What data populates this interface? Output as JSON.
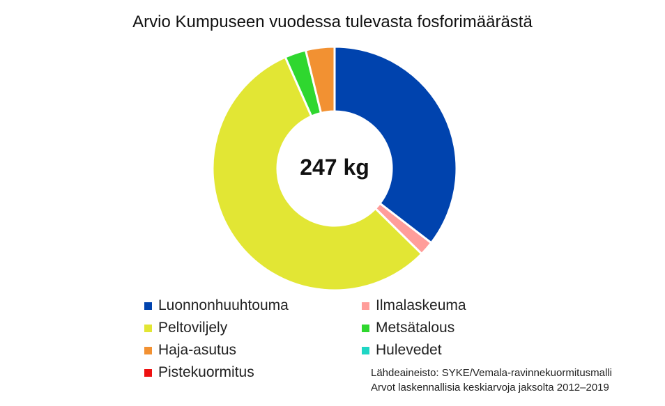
{
  "chart_data": {
    "type": "pie",
    "title": "Arvio Kumpuseen vuodessa tulevasta fosforimäärästä",
    "center_label": "247 kg",
    "categories": [
      "Luonnonhuuhtouma",
      "Ilmalaskeuma",
      "Peltoviljely",
      "Metsätalous",
      "Haja-asutus",
      "Hulevedet",
      "Pistekuormitus"
    ],
    "values": [
      35.3,
      1.9,
      55.8,
      2.8,
      3.8,
      0.0,
      0.0
    ],
    "colors": [
      "#0043ae",
      "#ff9d9a",
      "#e2e634",
      "#2fd72f",
      "#f29132",
      "#1fd6c4",
      "#ee1111"
    ],
    "legend_position": "bottom",
    "source_lines": [
      "Lähdeaineisto: SYKE/Vemala-ravinnekuormitusmalli",
      "Arvot laskennallisia keskiarvoja jaksolta 2012–2019"
    ]
  }
}
